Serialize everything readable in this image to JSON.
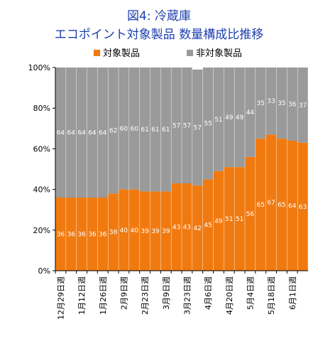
{
  "title_line1": "図4: 冷蔵庫",
  "title_line2": "エコポイント対象製品 数量構成比推移",
  "chart_data": {
    "type": "bar",
    "stacked": true,
    "title": "図4: 冷蔵庫 エコポイント対象製品 数量構成比推移",
    "categories": [
      "12月29日週",
      "",
      "1月12日週",
      "",
      "1月26日週",
      "",
      "2月9日週",
      "",
      "2月23日週",
      "",
      "3月9日週",
      "",
      "3月23日週",
      "",
      "4月6日週",
      "",
      "4月20日週",
      "",
      "5月4日週",
      "",
      "5月18日週",
      "",
      "6月1日週",
      ""
    ],
    "series": [
      {
        "name": "対象製品",
        "color": "#f07a10",
        "values": [
          36,
          36,
          36,
          36,
          36,
          38,
          40,
          40,
          39,
          39,
          39,
          43,
          43,
          42,
          45,
          49,
          51,
          51,
          56,
          65,
          67,
          65,
          64,
          63
        ]
      },
      {
        "name": "非対象製品",
        "color": "#9a9a9a",
        "values": [
          64,
          64,
          64,
          64,
          64,
          62,
          60,
          60,
          61,
          61,
          61,
          57,
          57,
          57,
          55,
          51,
          49,
          49,
          44,
          35,
          33,
          35,
          36,
          37
        ]
      }
    ],
    "y_ticks": [
      "0%",
      "20%",
      "40%",
      "60%",
      "80%",
      "100%"
    ],
    "ylim": [
      0,
      100
    ],
    "legend_position": "top",
    "grid": false
  }
}
